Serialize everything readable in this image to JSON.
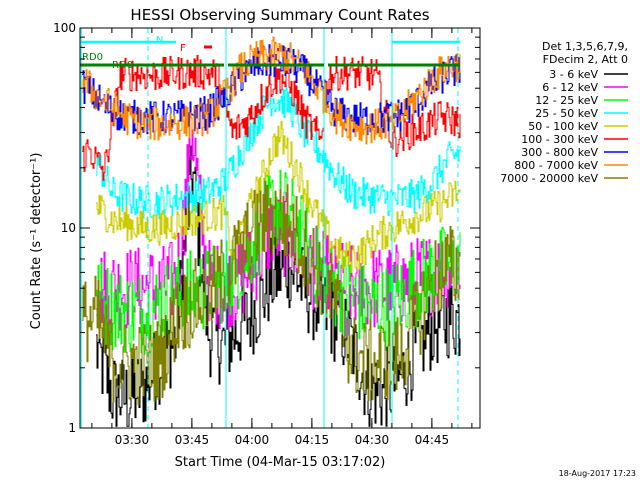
{
  "chart_data": {
    "type": "line",
    "title": "HESSI Observing Summary Count Rates",
    "xlabel": "Start Time (04-Mar-15 03:17:02)",
    "ylabel": "Count Rate (s⁻¹ detector⁻¹)",
    "y_scale": "log",
    "ylim": [
      1,
      100
    ],
    "y_ticks": [
      {
        "value": 1,
        "label": "1"
      },
      {
        "value": 10,
        "label": "10"
      },
      {
        "value": 100,
        "label": "100"
      }
    ],
    "x_range_minutes": [
      0,
      100
    ],
    "x_ticks": [
      {
        "minute": 12.97,
        "label": "03:30"
      },
      {
        "minute": 27.97,
        "label": "03:45"
      },
      {
        "minute": 42.97,
        "label": "04:00"
      },
      {
        "minute": 57.97,
        "label": "04:15"
      },
      {
        "minute": 72.97,
        "label": "04:30"
      },
      {
        "minute": 87.97,
        "label": "04:45"
      }
    ],
    "legend_position": "right",
    "legend_header": [
      "Det 1,3,5,6,7,9,",
      "FDecim 2, Att 0"
    ],
    "series": [
      {
        "name": "3 - 6 keV",
        "color": "#000000",
        "x": [
          4,
          8,
          12,
          16,
          20,
          24,
          28,
          32,
          36,
          40,
          44,
          48,
          52,
          56,
          60,
          64,
          68,
          72,
          76,
          80,
          84,
          88,
          92,
          95
        ],
        "y": [
          2.5,
          1.5,
          1.4,
          1.6,
          2.2,
          2.8,
          20,
          3.0,
          2.6,
          3.2,
          4.0,
          5.6,
          6.5,
          5.0,
          4.0,
          3.4,
          2.6,
          1.6,
          1.5,
          1.8,
          2.5,
          3.2,
          3.6,
          3.5
        ]
      },
      {
        "name": "6 - 12 keV",
        "color": "#ff00ff",
        "x": [
          4,
          8,
          12,
          16,
          20,
          24,
          26,
          28,
          30,
          32,
          36,
          40,
          44,
          48,
          52,
          56,
          60,
          64,
          68,
          72,
          76,
          80,
          84,
          88,
          92,
          95
        ],
        "y": [
          5,
          5,
          5,
          5,
          5,
          5.5,
          12,
          33,
          12,
          5.5,
          5,
          5.5,
          7,
          10,
          9,
          7,
          6,
          5.5,
          5,
          5,
          5,
          5.2,
          5.5,
          6,
          6.5,
          6.2
        ]
      },
      {
        "name": "12 - 25 keV",
        "color": "#00ff00",
        "x": [
          4,
          8,
          12,
          16,
          20,
          24,
          28,
          32,
          36,
          40,
          44,
          48,
          52,
          56,
          60,
          64,
          68,
          72,
          76,
          80,
          84,
          88,
          92,
          95
        ],
        "y": [
          4.5,
          4,
          3.8,
          3.8,
          4.2,
          4.5,
          4.8,
          5,
          5.5,
          6.5,
          9,
          13,
          12,
          8.5,
          6,
          5,
          4.5,
          4,
          4,
          4.5,
          5.2,
          6,
          6.5,
          6.5
        ]
      },
      {
        "name": "25 - 50 keV",
        "color": "#00ffff",
        "x": [
          4,
          8,
          12,
          16,
          20,
          24,
          28,
          32,
          36,
          40,
          44,
          48,
          52,
          56,
          60,
          64,
          68,
          72,
          76,
          80,
          84,
          88,
          92,
          95
        ],
        "y": [
          22,
          15,
          14,
          13.5,
          13.5,
          14,
          14.5,
          15,
          17,
          24,
          34,
          45,
          42,
          30,
          24,
          18,
          15,
          14.5,
          14,
          14,
          14.5,
          17,
          22,
          24
        ]
      },
      {
        "name": "50 - 100 keV",
        "color": "#cccc00",
        "x": [
          4,
          8,
          12,
          16,
          20,
          24,
          28,
          32,
          36,
          38,
          42,
          46,
          48,
          50,
          54,
          58,
          62,
          66,
          70,
          74,
          78,
          82,
          86,
          90,
          94,
          95
        ],
        "y": [
          13,
          11,
          10.5,
          10,
          10,
          10.5,
          11,
          11.5,
          12,
          7.5,
          12,
          19,
          25,
          29,
          20,
          13,
          9,
          7,
          7.5,
          9,
          10,
          11,
          12,
          13,
          15,
          15
        ]
      },
      {
        "name": "100 - 300 keV",
        "color": "#ff0000",
        "x": [
          0.5,
          2,
          6,
          10,
          14,
          18,
          22,
          26,
          30,
          34,
          38,
          42,
          46,
          48,
          50,
          52,
          54,
          56,
          60,
          62,
          66,
          70,
          74,
          78,
          82,
          86,
          90,
          95
        ],
        "y": [
          22,
          25,
          19,
          58,
          59,
          58,
          59,
          60,
          60,
          59,
          30,
          35,
          47,
          54,
          57,
          52,
          45,
          35,
          28,
          58,
          60,
          59,
          58,
          27,
          30,
          32,
          36,
          34
        ]
      },
      {
        "name": "300 - 800 keV",
        "color": "#0000ff",
        "x": [
          0.5,
          4,
          8,
          12,
          16,
          20,
          24,
          28,
          32,
          36,
          40,
          44,
          48,
          52,
          56,
          60,
          64,
          68,
          72,
          76,
          80,
          84,
          88,
          92,
          95
        ],
        "y": [
          52,
          45,
          38,
          36,
          35.5,
          35.5,
          36,
          36,
          38,
          45,
          57,
          66,
          68,
          67,
          60,
          48,
          38,
          35,
          35,
          35.5,
          37,
          42,
          52,
          60,
          62
        ]
      },
      {
        "name": "800 - 7000 keV",
        "color": "#ff8800",
        "x": [
          0.5,
          4,
          8,
          12,
          16,
          20,
          24,
          28,
          32,
          36,
          40,
          44,
          48,
          52,
          56,
          60,
          64,
          68,
          72,
          76,
          80,
          84,
          88,
          92,
          95
        ],
        "y": [
          56,
          46,
          40,
          35,
          33,
          33,
          33.5,
          34,
          36,
          46,
          62,
          71,
          74,
          71,
          62,
          48,
          36,
          33,
          32,
          33,
          36,
          45,
          56,
          64,
          66
        ]
      },
      {
        "name": "7000 - 20000 keV",
        "color": "#808000",
        "x": [
          0.5,
          4,
          8,
          12,
          16,
          20,
          24,
          28,
          32,
          36,
          40,
          44,
          48,
          52,
          56,
          60,
          64,
          68,
          72,
          76,
          80,
          84,
          88,
          92,
          95
        ],
        "y": [
          3.4,
          3.6,
          2.2,
          2.1,
          2.1,
          2.2,
          3.6,
          4.2,
          4.6,
          5.8,
          7.5,
          10,
          11.5,
          10.5,
          8,
          6,
          4.2,
          2.3,
          2.1,
          2.2,
          2.3,
          3.4,
          5.5,
          6.5,
          6
        ]
      }
    ],
    "annotations": [
      {
        "text": "N",
        "color": "#00ffff"
      },
      {
        "text": "F",
        "color": "#ff0000"
      },
      {
        "text": "RD0",
        "color": "#008000"
      },
      {
        "text": "RD0",
        "color": "#008000"
      }
    ],
    "footer": "18-Aug-2017 17:23",
    "colors": {
      "night": "#00ffff",
      "flare": "#ff0000",
      "rd0": "#008000",
      "axes": "#000000",
      "background": "#ffffff"
    }
  }
}
